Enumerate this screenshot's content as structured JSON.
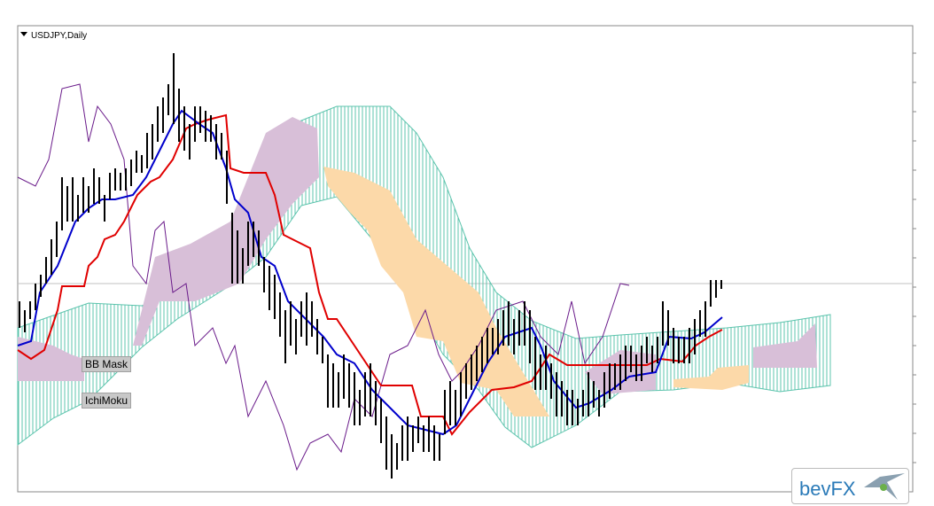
{
  "header": {
    "symbol": "USDJPY,Daily"
  },
  "buttons": [
    {
      "label": "BB Mask"
    },
    {
      "label": "IchiMoku"
    }
  ],
  "logo": {
    "text": "bevFX"
  }
}
